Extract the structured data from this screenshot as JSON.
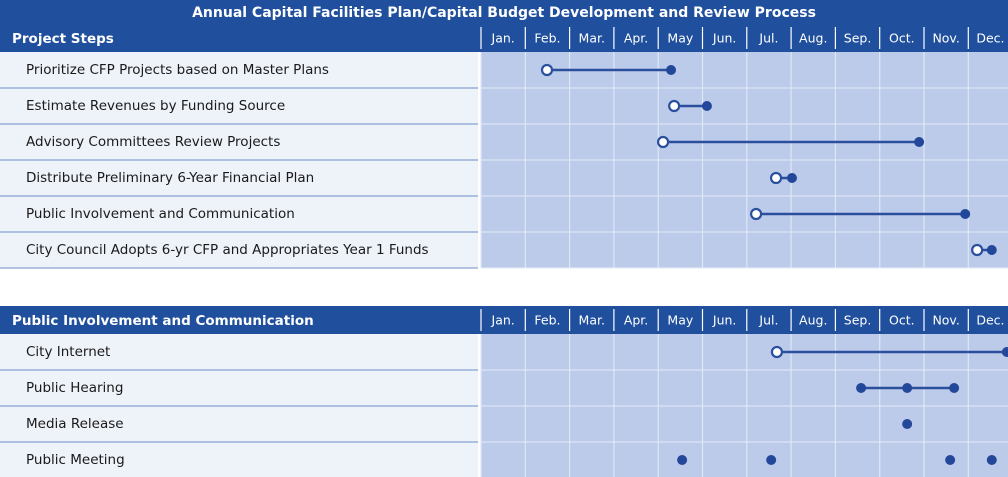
{
  "title": "Annual Capital Facilities Plan/Capital Budget Development and Review Process",
  "sections": [
    {
      "header": "Project Steps",
      "months": [
        "Jan.",
        "Feb.",
        "Mar.",
        "Apr.",
        "May",
        "Jun.",
        "Jul.",
        "Aug.",
        "Sep.",
        "Oct.",
        "Nov.",
        "Dec."
      ],
      "rows": [
        {
          "label": "Prioritize CFP Projects based on Master Plans",
          "connected": true,
          "points": [
            {
              "month": 1.49,
              "open": true
            },
            {
              "month": 4.29,
              "open": false
            }
          ]
        },
        {
          "label": "Estimate Revenues by Funding Source",
          "connected": true,
          "points": [
            {
              "month": 4.36,
              "open": true
            },
            {
              "month": 5.1,
              "open": false
            }
          ]
        },
        {
          "label": "Advisory Committees Review Projects",
          "connected": true,
          "points": [
            {
              "month": 4.11,
              "open": true
            },
            {
              "month": 9.89,
              "open": false
            }
          ]
        },
        {
          "label": "Distribute Preliminary 6-Year Financial Plan",
          "connected": true,
          "points": [
            {
              "month": 6.66,
              "open": true
            },
            {
              "month": 7.02,
              "open": false
            }
          ]
        },
        {
          "label": "Public Involvement and Communication",
          "connected": true,
          "points": [
            {
              "month": 6.21,
              "open": true
            },
            {
              "month": 10.93,
              "open": false
            }
          ]
        },
        {
          "label": "City Council Adopts 6-yr CFP and Appropriates Year 1 Funds",
          "connected": true,
          "points": [
            {
              "month": 11.2,
              "open": true
            },
            {
              "month": 11.53,
              "open": false
            }
          ]
        }
      ]
    },
    {
      "header": "Public Involvement  and Communication",
      "months": [
        "Jan.",
        "Feb.",
        "Mar.",
        "Apr.",
        "May",
        "Jun.",
        "Jul.",
        "Aug.",
        "Sep.",
        "Oct.",
        "Nov.",
        "Dec."
      ],
      "rows": [
        {
          "label": "City Internet",
          "connected": true,
          "points": [
            {
              "month": 6.68,
              "open": true
            },
            {
              "month": 11.87,
              "open": false
            }
          ]
        },
        {
          "label": "Public Hearing",
          "connected": true,
          "points": [
            {
              "month": 8.58,
              "open": false
            },
            {
              "month": 9.62,
              "open": false
            },
            {
              "month": 10.68,
              "open": false
            }
          ]
        },
        {
          "label": "Media Release",
          "connected": false,
          "points": [
            {
              "month": 9.62,
              "open": false
            }
          ]
        },
        {
          "label": "Public Meeting",
          "connected": false,
          "points": [
            {
              "month": 4.54,
              "open": false
            },
            {
              "month": 6.55,
              "open": false
            },
            {
              "month": 10.59,
              "open": false
            },
            {
              "month": 11.53,
              "open": false
            }
          ]
        }
      ]
    }
  ]
}
